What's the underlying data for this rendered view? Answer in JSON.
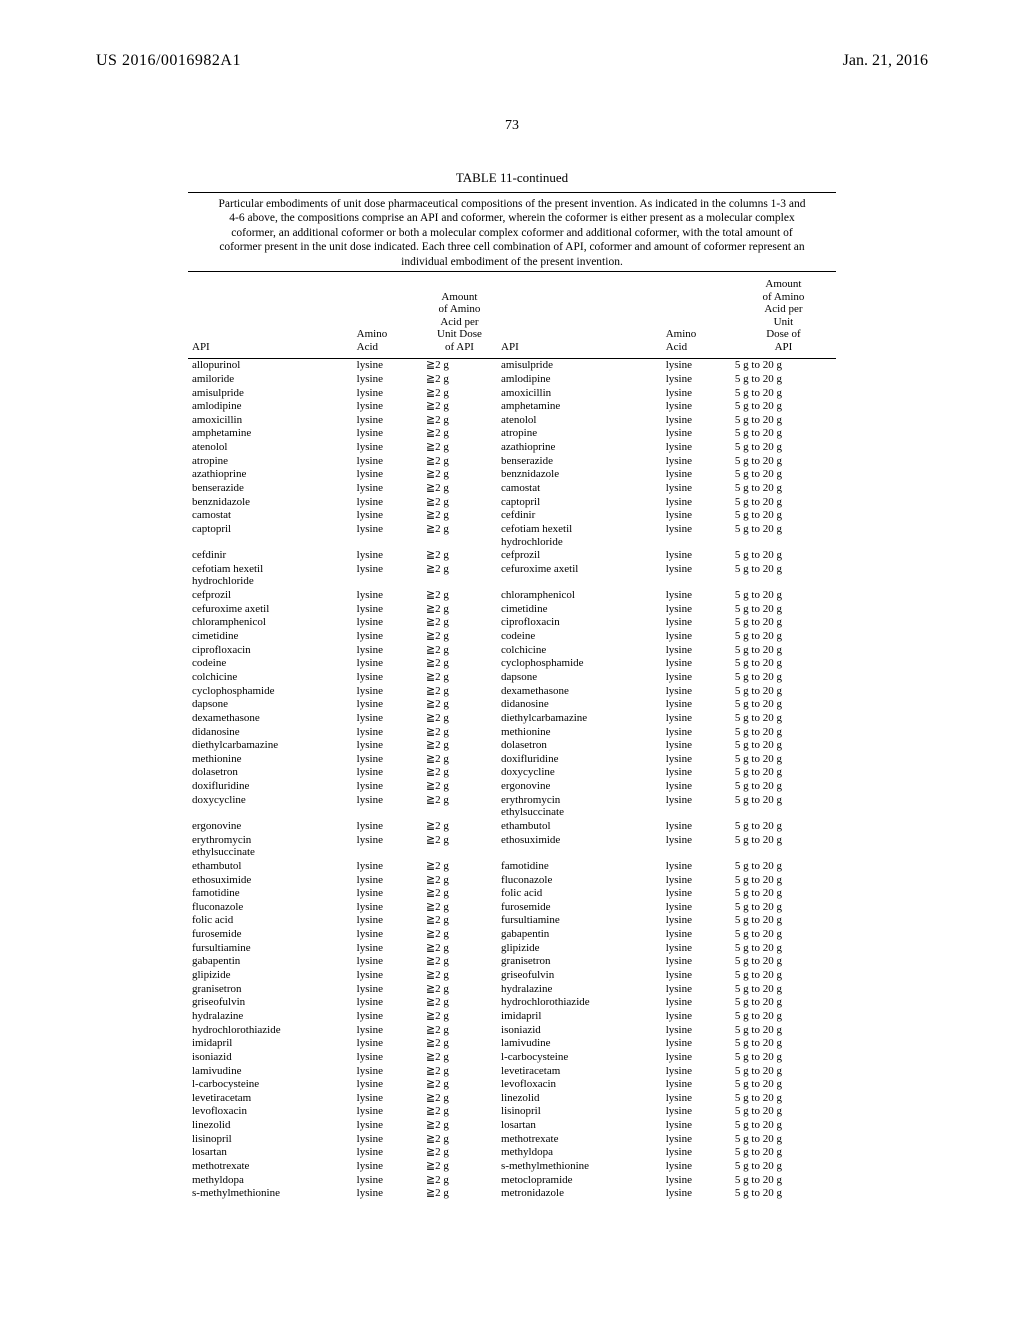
{
  "header": {
    "left": "US 2016/0016982A1",
    "right": "Jan. 21, 2016",
    "page_number": "73"
  },
  "table": {
    "title": "TABLE 11-continued",
    "caption": "Particular embodiments of unit dose pharmaceutical compositions of the present invention. As indicated in the columns 1-3 and 4-6 above, the compositions comprise an API and coformer, wherein the coformer is either present as a molecular complex coformer, an additional coformer or both a molecular complex coformer and additional coformer, with the total amount of coformer present in the unit dose indicated. Each three cell combination of API, coformer and amount of coformer represent an individual embodiment of the present invention.",
    "headers": {
      "api": "API",
      "amino": "Amino\nAcid",
      "dose_left": "Amount\nof Amino\nAcid per\nUnit Dose\nof API",
      "dose_right": "Amount\nof Amino\nAcid per\nUnit\nDose of\nAPI"
    },
    "amino": "lysine",
    "dose_l": "≧2  g",
    "dose_r": "5 g to 20 g",
    "rows": [
      [
        "allopurinol",
        "amisulpride"
      ],
      [
        "amiloride",
        "amlodipine"
      ],
      [
        "amisulpride",
        "amoxicillin"
      ],
      [
        "amlodipine",
        "amphetamine"
      ],
      [
        "amoxicillin",
        "atenolol"
      ],
      [
        "amphetamine",
        "atropine"
      ],
      [
        "atenolol",
        "azathioprine"
      ],
      [
        "atropine",
        "benserazide"
      ],
      [
        "azathioprine",
        "benznidazole"
      ],
      [
        "benserazide",
        "camostat"
      ],
      [
        "benznidazole",
        "captopril"
      ],
      [
        "camostat",
        "cefdinir"
      ],
      [
        "captopril",
        "cefotiam hexetil\nhydrochloride"
      ],
      [
        "cefdinir",
        "cefprozil"
      ],
      [
        "cefotiam hexetil\nhydrochloride",
        "cefuroxime axetil"
      ],
      [
        "cefprozil",
        "chloramphenicol"
      ],
      [
        "cefuroxime axetil",
        "cimetidine"
      ],
      [
        "chloramphenicol",
        "ciprofloxacin"
      ],
      [
        "cimetidine",
        "codeine"
      ],
      [
        "ciprofloxacin",
        "colchicine"
      ],
      [
        "codeine",
        "cyclophosphamide"
      ],
      [
        "colchicine",
        "dapsone"
      ],
      [
        "cyclophosphamide",
        "dexamethasone"
      ],
      [
        "dapsone",
        "didanosine"
      ],
      [
        "dexamethasone",
        "diethylcarbamazine"
      ],
      [
        "didanosine",
        "methionine"
      ],
      [
        "diethylcarbamazine",
        "dolasetron"
      ],
      [
        "methionine",
        "doxifluridine"
      ],
      [
        "dolasetron",
        "doxycycline"
      ],
      [
        "doxifluridine",
        "ergonovine"
      ],
      [
        "doxycycline",
        "erythromycin\nethylsuccinate"
      ],
      [
        "ergonovine",
        "ethambutol"
      ],
      [
        "erythromycin\nethylsuccinate",
        "ethosuximide"
      ],
      [
        "ethambutol",
        "famotidine"
      ],
      [
        "ethosuximide",
        "fluconazole"
      ],
      [
        "famotidine",
        "folic acid"
      ],
      [
        "fluconazole",
        "furosemide"
      ],
      [
        "folic acid",
        "fursultiamine"
      ],
      [
        "furosemide",
        "gabapentin"
      ],
      [
        "fursultiamine",
        "glipizide"
      ],
      [
        "gabapentin",
        "granisetron"
      ],
      [
        "glipizide",
        "griseofulvin"
      ],
      [
        "granisetron",
        "hydralazine"
      ],
      [
        "griseofulvin",
        "hydrochlorothiazide"
      ],
      [
        "hydralazine",
        "imidapril"
      ],
      [
        "hydrochlorothiazide",
        "isoniazid"
      ],
      [
        "imidapril",
        "lamivudine"
      ],
      [
        "isoniazid",
        "l-carbocysteine"
      ],
      [
        "lamivudine",
        "levetiracetam"
      ],
      [
        "l-carbocysteine",
        "levofloxacin"
      ],
      [
        "levetiracetam",
        "linezolid"
      ],
      [
        "levofloxacin",
        "lisinopril"
      ],
      [
        "linezolid",
        "losartan"
      ],
      [
        "lisinopril",
        "methotrexate"
      ],
      [
        "losartan",
        "methyldopa"
      ],
      [
        "methotrexate",
        "s-methylmethionine"
      ],
      [
        "methyldopa",
        "metoclopramide"
      ],
      [
        "s-methylmethionine",
        "metronidazole"
      ]
    ]
  }
}
